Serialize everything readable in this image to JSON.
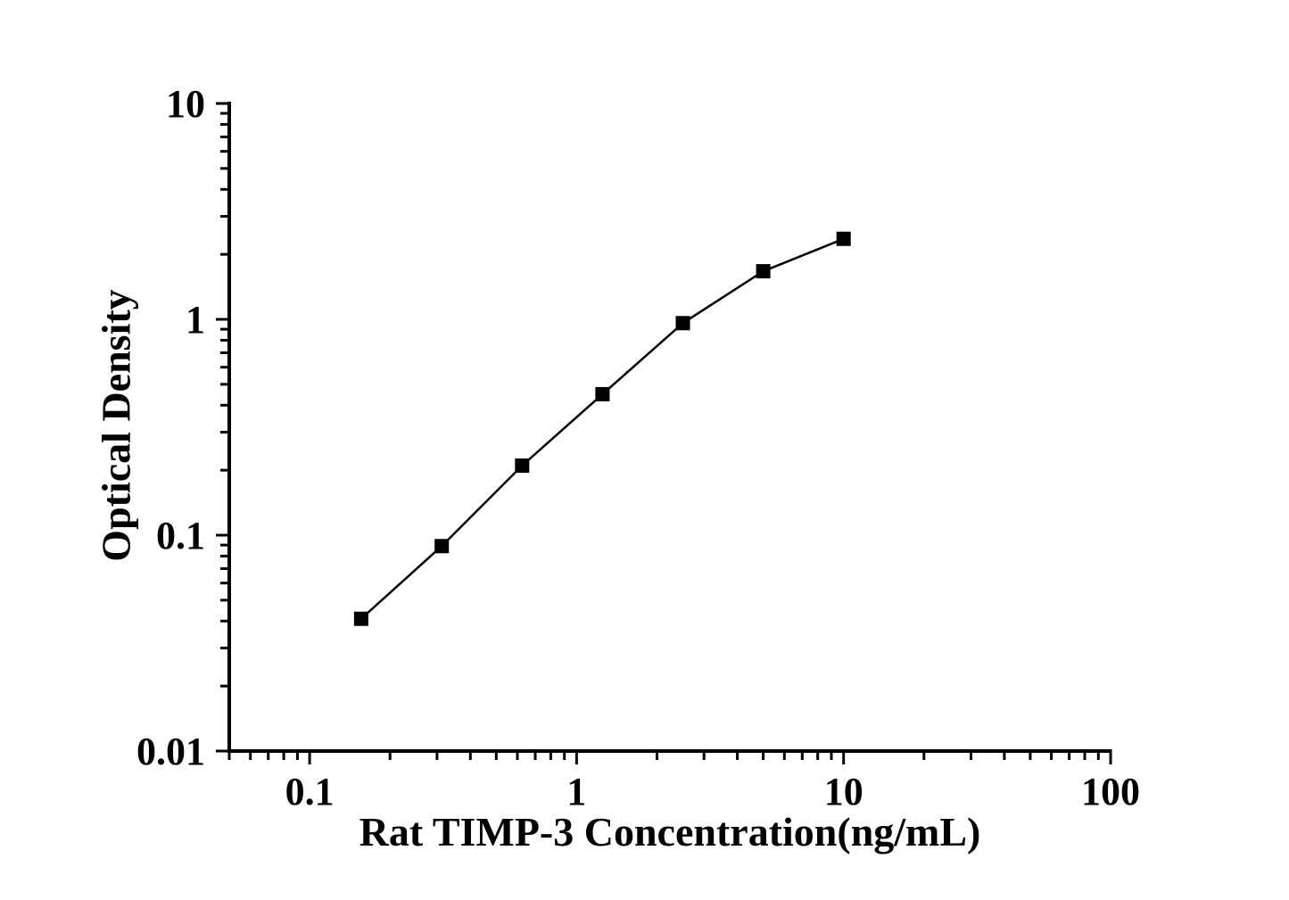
{
  "figure": {
    "background_color": "#ffffff",
    "ink_color": "#000000"
  },
  "chart_data": {
    "type": "line",
    "title": "",
    "xlabel": "Rat TIMP-3 Concentration(ng/mL)",
    "ylabel": "Optical Density",
    "x_scale": "log",
    "y_scale": "log",
    "xlim": [
      0.05,
      100
    ],
    "ylim": [
      0.01,
      10
    ],
    "x_major_ticks": [
      0.1,
      1,
      10,
      100
    ],
    "x_major_tick_labels": [
      "0.1",
      "1",
      "10",
      "100"
    ],
    "y_major_ticks": [
      0.01,
      0.1,
      1,
      10
    ],
    "y_major_tick_labels": [
      "0.01",
      "0.1",
      "1",
      "10"
    ],
    "grid": false,
    "legend": null,
    "series": [
      {
        "name": "standard-curve",
        "marker": "filled-square",
        "line_color": "#000000",
        "marker_color": "#000000",
        "points": [
          {
            "x": 0.156,
            "y": 0.041
          },
          {
            "x": 0.3125,
            "y": 0.089
          },
          {
            "x": 0.625,
            "y": 0.21
          },
          {
            "x": 1.25,
            "y": 0.45
          },
          {
            "x": 2.5,
            "y": 0.96
          },
          {
            "x": 5,
            "y": 1.67
          },
          {
            "x": 10,
            "y": 2.36
          }
        ]
      }
    ]
  }
}
